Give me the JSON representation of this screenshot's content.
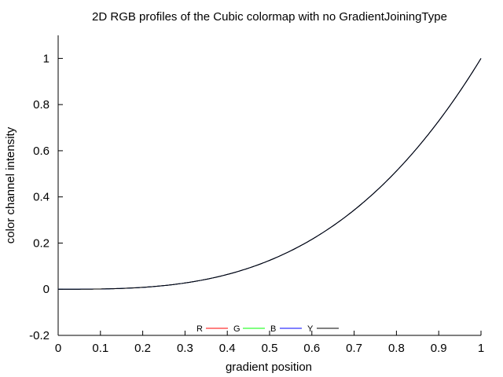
{
  "chart_data": {
    "type": "line",
    "title": "2D RGB profiles of the Cubic colormap with no GradientJoiningType",
    "xlabel": "gradient position",
    "ylabel": "color channel intensity",
    "xlim": [
      0,
      1
    ],
    "ylim": [
      -0.2,
      1.1
    ],
    "x_ticks": [
      0,
      0.1,
      0.2,
      0.3,
      0.4,
      0.5,
      0.6,
      0.7,
      0.8,
      0.9,
      1
    ],
    "y_ticks": [
      -0.2,
      0,
      0.2,
      0.4,
      0.6,
      0.8,
      1
    ],
    "x_tick_labels": [
      "0",
      "0.1",
      "0.2",
      "0.3",
      "0.4",
      "0.5",
      "0.6",
      "0.7",
      "0.8",
      "0.9",
      "1"
    ],
    "y_tick_labels": [
      "-0.2",
      "0",
      "0.2",
      "0.4",
      "0.6",
      "0.8",
      "1"
    ],
    "grid": false,
    "legend_position": "bottom-center",
    "series": [
      {
        "name": "R",
        "color": "#ff0000",
        "x": [
          0,
          0.1,
          0.2,
          0.3,
          0.4,
          0.5,
          0.6,
          0.7,
          0.8,
          0.9,
          1
        ],
        "y": [
          0,
          0.001,
          0.008,
          0.027,
          0.064,
          0.125,
          0.216,
          0.343,
          0.512,
          0.729,
          1
        ]
      },
      {
        "name": "G",
        "color": "#00ff00",
        "x": [
          0,
          0.1,
          0.2,
          0.3,
          0.4,
          0.5,
          0.6,
          0.7,
          0.8,
          0.9,
          1
        ],
        "y": [
          0,
          0.001,
          0.008,
          0.027,
          0.064,
          0.125,
          0.216,
          0.343,
          0.512,
          0.729,
          1
        ]
      },
      {
        "name": "B",
        "color": "#0000ff",
        "x": [
          0,
          0.1,
          0.2,
          0.3,
          0.4,
          0.5,
          0.6,
          0.7,
          0.8,
          0.9,
          1
        ],
        "y": [
          0,
          0.001,
          0.008,
          0.027,
          0.064,
          0.125,
          0.216,
          0.343,
          0.512,
          0.729,
          1
        ]
      },
      {
        "name": "Y",
        "color": "#000000",
        "x": [
          0,
          0.1,
          0.2,
          0.3,
          0.4,
          0.5,
          0.6,
          0.7,
          0.8,
          0.9,
          1
        ],
        "y": [
          0,
          0.001,
          0.008,
          0.027,
          0.064,
          0.125,
          0.216,
          0.343,
          0.512,
          0.729,
          1
        ]
      }
    ]
  }
}
